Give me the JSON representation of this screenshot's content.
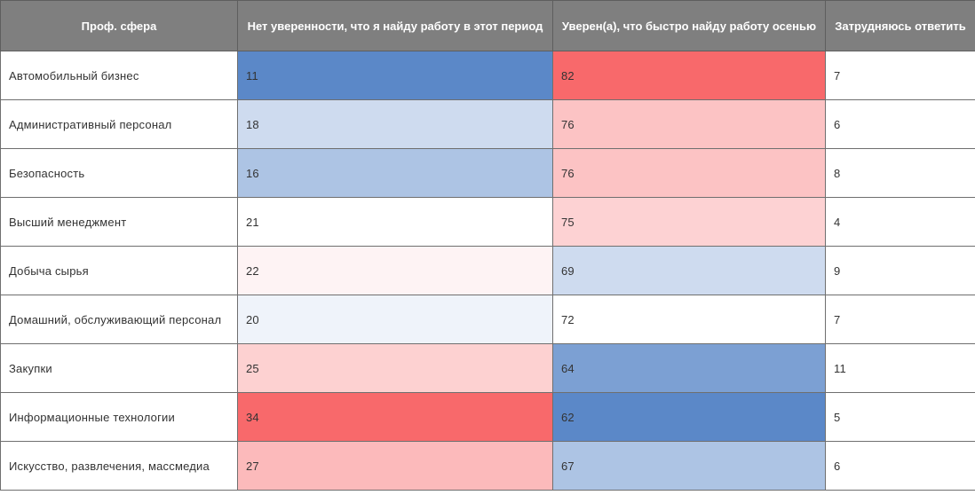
{
  "chart_data": {
    "type": "table",
    "columns": [
      "Проф. сфера",
      "Нет уверенности, что я найду работу в этот период",
      "Уверен(а), что быстро найду работу осенью",
      "Затрудняюсь ответить"
    ],
    "rows": [
      {
        "sphere": "Автомобильный бизнес",
        "not_sure": 11,
        "confident": 82,
        "undecided": 7
      },
      {
        "sphere": "Административный персонал",
        "not_sure": 18,
        "confident": 76,
        "undecided": 6
      },
      {
        "sphere": "Безопасность",
        "not_sure": 16,
        "confident": 76,
        "undecided": 8
      },
      {
        "sphere": "Высший менеджмент",
        "not_sure": 21,
        "confident": 75,
        "undecided": 4
      },
      {
        "sphere": "Добыча сырья",
        "not_sure": 22,
        "confident": 69,
        "undecided": 9
      },
      {
        "sphere": "Домашний, обслуживающий персонал",
        "not_sure": 20,
        "confident": 72,
        "undecided": 7
      },
      {
        "sphere": "Закупки",
        "not_sure": 25,
        "confident": 64,
        "undecided": 11
      },
      {
        "sphere": "Информационные технологии",
        "not_sure": 34,
        "confident": 62,
        "undecided": 5
      },
      {
        "sphere": "Искусство, развлечения, массмедиа",
        "not_sure": 27,
        "confident": 67,
        "undecided": 6
      }
    ],
    "color_scale": {
      "low": "#5b88c8",
      "mid": "#ffffff",
      "high": "#f8696b"
    }
  }
}
